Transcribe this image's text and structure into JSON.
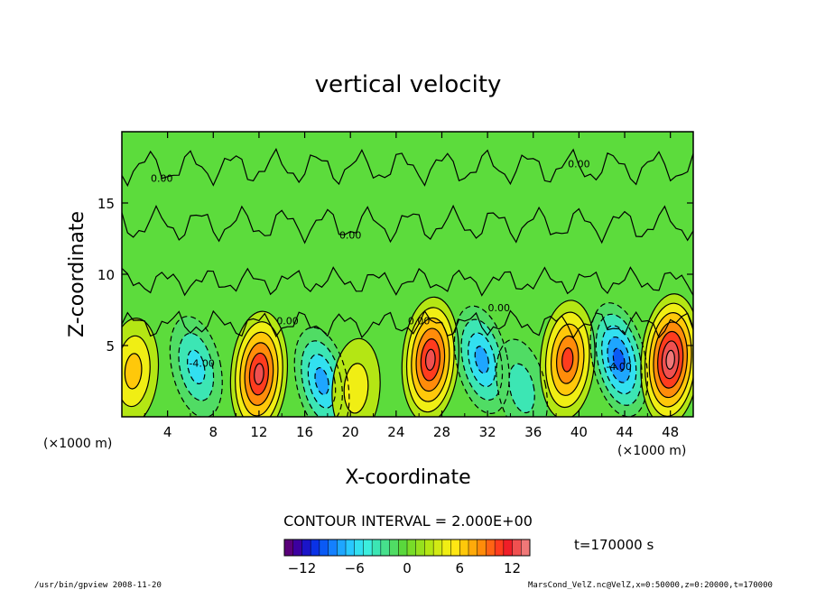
{
  "chart_data": {
    "type": "heatmap",
    "title": "vertical velocity",
    "xlabel": "X-coordinate",
    "ylabel": "Z-coordinate",
    "x_unit": "(×1000 m)",
    "y_unit": "(×1000 m)",
    "xlim": [
      0,
      50
    ],
    "ylim": [
      0,
      20
    ],
    "x_ticks": [
      "4",
      "8",
      "12",
      "16",
      "20",
      "24",
      "28",
      "32",
      "36",
      "40",
      "44",
      "48"
    ],
    "y_ticks": [
      "5",
      "10",
      "15"
    ],
    "contour_interval_text": "CONTOUR INTERVAL = 2.000E+00",
    "contour_labels": [
      "-4.00",
      "-4.00",
      "0.00",
      "0.00",
      "0.00",
      "0.00",
      "0.00",
      "0.00"
    ],
    "colorbar": {
      "range": [
        -14,
        14
      ],
      "tick_labels": [
        "−12",
        "−6",
        "0",
        "6",
        "12"
      ],
      "colors": [
        "#5a007a",
        "#3c00a0",
        "#1a14c8",
        "#0a32e6",
        "#0a5af5",
        "#1480ff",
        "#1ea6ff",
        "#28c8ff",
        "#32e0f0",
        "#3ceede",
        "#3ce6b4",
        "#46e08c",
        "#50dc64",
        "#5ad83c",
        "#78dc28",
        "#96e01e",
        "#b4e614",
        "#d2ea14",
        "#f0ee14",
        "#ffe614",
        "#ffc80a",
        "#ffaa0a",
        "#ff8c0a",
        "#ff6414",
        "#ff3c1e",
        "#f01e28",
        "#f05050",
        "#f07878"
      ]
    },
    "time_label": "t=170000 s",
    "cells": [
      {
        "x": 1,
        "z": 3.2,
        "w": 6
      },
      {
        "x": 6.5,
        "z": 3.5,
        "w": -5
      },
      {
        "x": 12,
        "z": 3.0,
        "w": 12
      },
      {
        "x": 17.5,
        "z": 2.5,
        "w": -7
      },
      {
        "x": 20.5,
        "z": 2.0,
        "w": 4
      },
      {
        "x": 27,
        "z": 4.0,
        "w": 12
      },
      {
        "x": 31.5,
        "z": 4.0,
        "w": -7
      },
      {
        "x": 35,
        "z": 2.0,
        "w": -4
      },
      {
        "x": 39,
        "z": 4.0,
        "w": 10
      },
      {
        "x": 43.5,
        "z": 4.0,
        "w": -9
      },
      {
        "x": 48,
        "z": 4.0,
        "w": 14
      }
    ]
  },
  "footer": {
    "left": "/usr/bin/gpview  2008-11-20",
    "right": "MarsCond_VelZ.nc@VelZ,x=0:50000,z=0:20000,t=170000"
  }
}
